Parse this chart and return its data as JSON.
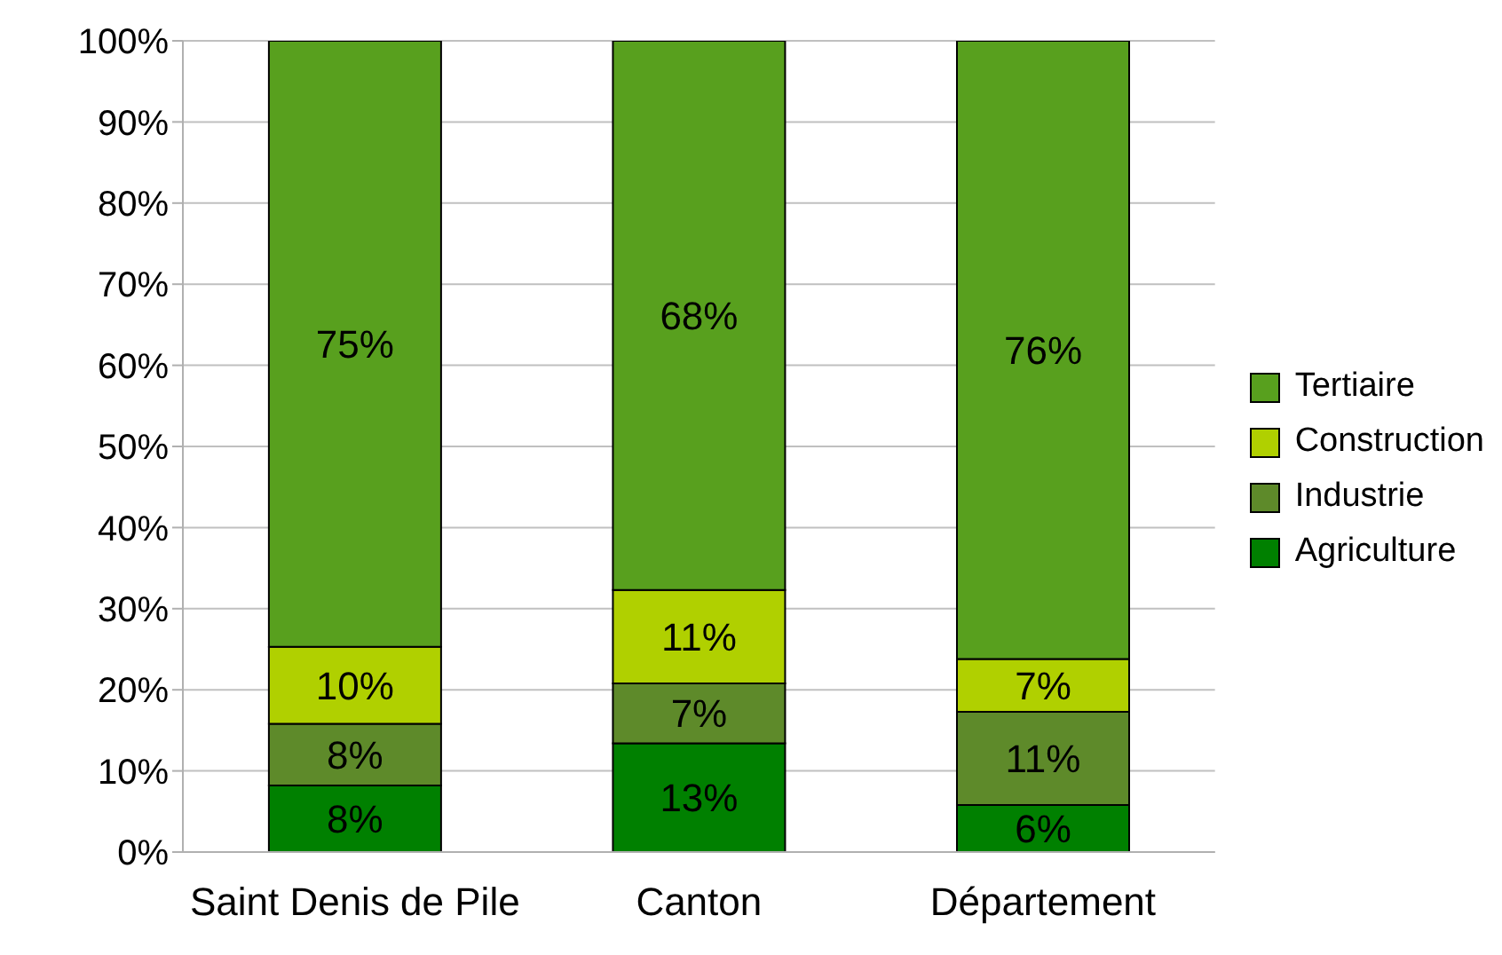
{
  "chart_data": {
    "type": "bar",
    "stacked": true,
    "categories": [
      "Saint Denis de Pile",
      "Canton",
      "Département"
    ],
    "series": [
      {
        "name": "Agriculture",
        "color": "#008000",
        "values": [
          8.2,
          13.4,
          5.8
        ],
        "value_labels": [
          "8%",
          "13%",
          "6%"
        ]
      },
      {
        "name": "Industrie",
        "color": "#5e8a2a",
        "values": [
          7.6,
          7.4,
          11.5
        ],
        "value_labels": [
          "8%",
          "7%",
          "11%"
        ]
      },
      {
        "name": "Construction",
        "color": "#b0d000",
        "values": [
          9.5,
          11.5,
          6.5
        ],
        "value_labels": [
          "10%",
          "11%",
          "7%"
        ]
      },
      {
        "name": "Tertiaire",
        "color": "#58a01e",
        "values": [
          74.7,
          67.7,
          76.2
        ],
        "value_labels": [
          "75%",
          "68%",
          "76%"
        ]
      }
    ],
    "ylim": [
      0,
      100
    ],
    "yticks": [
      {
        "value": 0,
        "label": "0%"
      },
      {
        "value": 10,
        "label": "10%"
      },
      {
        "value": 20,
        "label": "20%"
      },
      {
        "value": 30,
        "label": "30%"
      },
      {
        "value": 40,
        "label": "40%"
      },
      {
        "value": 50,
        "label": "50%"
      },
      {
        "value": 60,
        "label": "60%"
      },
      {
        "value": 70,
        "label": "70%"
      },
      {
        "value": 80,
        "label": "80%"
      },
      {
        "value": 90,
        "label": "90%"
      },
      {
        "value": 100,
        "label": "100%"
      }
    ],
    "grid": "y",
    "legend": "right"
  }
}
